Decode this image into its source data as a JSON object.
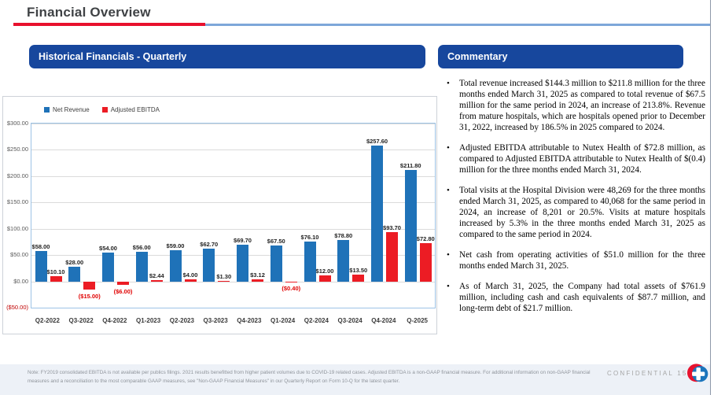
{
  "slide": {
    "title": "Financial Overview"
  },
  "panels": {
    "historical": {
      "header": "Historical Financials - Quarterly"
    },
    "commentary": {
      "header": "Commentary",
      "bullets": [
        "Total revenue increased $144.3 million to $211.8 million for the three months ended March 31, 2025 as compared to total revenue of $67.5 million for the same period in 2024, an increase of 213.8%. Revenue from mature hospitals, which are hospitals opened prior to December 31, 2022, increased by 186.5% in 2025 compared to 2024.",
        "Adjusted EBITDA attributable to Nutex Health of $72.8 million, as compared to Adjusted EBITDA attributable to Nutex Health of $(0.4) million for the three months ended March 31, 2024.",
        "Total visits at the Hospital Division were 48,269 for the three months ended March 31, 2025, as compared to 40,068 for the same period in 2024, an increase of 8,201 or 20.5%. Visits at mature hospitals increased by 5.3% in the three months ended March 31, 2025 as compared to the same period in 2024.",
        "Net cash from operating activities of $51.0 million for the three months ended March 31, 2025.",
        "As of March 31, 2025, the Company had total assets of $761.9 million, including cash and cash equivalents of $87.7 million, and long-term debt of $21.7 million."
      ]
    }
  },
  "chart_data": {
    "type": "bar",
    "title": "Historical Financials - Quarterly",
    "xlabel": "",
    "ylabel": "",
    "ylim": [
      -50,
      300
    ],
    "grid": true,
    "legend_position": "top-left",
    "categories": [
      "Q2-2022",
      "Q3-2022",
      "Q4-2022",
      "Q1-2023",
      "Q2-2023",
      "Q3-2023",
      "Q4-2023",
      "Q1-2024",
      "Q2-2024",
      "Q3-2024",
      "Q4-2024",
      "Q-2025"
    ],
    "series": [
      {
        "name": "Net Revenue",
        "color": "#1f72b8",
        "values": [
          58.0,
          28.0,
          54.0,
          56.0,
          59.0,
          62.7,
          69.7,
          67.5,
          76.1,
          78.8,
          257.6,
          211.8
        ],
        "labels": [
          "$58.00",
          "$28.00",
          "$54.00",
          "$56.00",
          "$59.00",
          "$62.70",
          "$69.70",
          "$67.50",
          "$76.10",
          "$78.80",
          "$257.60",
          "$211.80"
        ]
      },
      {
        "name": "Adjusted EBITDA",
        "color": "#ec1c24",
        "values": [
          10.1,
          -15.0,
          -6.0,
          2.44,
          4.0,
          1.3,
          3.12,
          -0.4,
          12.0,
          13.5,
          93.7,
          72.8
        ],
        "labels": [
          "$10.10",
          "($15.00)",
          "($6.00)",
          "$2.44",
          "$4.00",
          "$1.30",
          "$3.12",
          "($0.40)",
          "$12.00",
          "$13.50",
          "$93.70",
          "$72.80"
        ]
      }
    ],
    "yticks": [
      {
        "v": 300,
        "label": "$300.00"
      },
      {
        "v": 250,
        "label": "$250.00"
      },
      {
        "v": 200,
        "label": "$200.00"
      },
      {
        "v": 150,
        "label": "$150.00"
      },
      {
        "v": 100,
        "label": "$100.00"
      },
      {
        "v": 50,
        "label": "$50.00"
      },
      {
        "v": 0,
        "label": "$0.00"
      },
      {
        "v": -50,
        "label": "($50.00)"
      }
    ]
  },
  "footer": {
    "note_lines": [
      "Note: FY2019 consolidated EBITDA is not available per publics filings. 2021 results benefitted from higher patient volumes due to COVID-19 related cases. Adjusted EBITDA is a non-GAAP financial measure.  For additional information on non-GAAP financial",
      "measures and a reconciliation to the most comparable GAAP measures, see \"Non-GAAP Financial Measures\" in our Quarterly Report on Form 10-Q for the latest quarter."
    ],
    "confidential": "CONFIDENTIAL",
    "page_number": "15",
    "logo": "nutex-health-cross-logo"
  },
  "colors": {
    "header_blue": "#17479d",
    "bar_blue": "#1f72b8",
    "bar_red": "#ec1c24",
    "accent_red": "#e8112d",
    "accent_light_blue": "#7da7d9",
    "footer_bg": "#edf1f7"
  }
}
